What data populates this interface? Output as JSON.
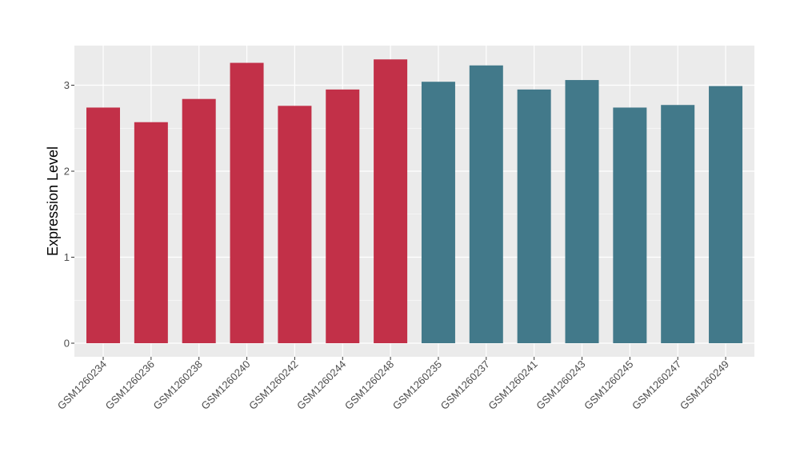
{
  "chart_data": {
    "type": "bar",
    "ylabel": "Expression Level",
    "xlabel": "",
    "ylim": [
      0,
      3.45
    ],
    "yticks": [
      0,
      1,
      2,
      3
    ],
    "grid": true,
    "legend": "none",
    "colors": {
      "group1": "#c23048",
      "group2": "#42798a",
      "panel": "#ebebeb",
      "grid": "#ffffff"
    },
    "categories": [
      "GSM1260234",
      "GSM1260236",
      "GSM1260238",
      "GSM1260240",
      "GSM1260242",
      "GSM1260244",
      "GSM1260248",
      "GSM1260235",
      "GSM1260237",
      "GSM1260241",
      "GSM1260243",
      "GSM1260245",
      "GSM1260247",
      "GSM1260249"
    ],
    "values": [
      2.74,
      2.57,
      2.84,
      3.26,
      2.76,
      2.95,
      3.3,
      3.04,
      3.23,
      2.95,
      3.06,
      2.74,
      2.77,
      2.99
    ],
    "groups": [
      1,
      1,
      1,
      1,
      1,
      1,
      1,
      2,
      2,
      2,
      2,
      2,
      2,
      2
    ]
  }
}
